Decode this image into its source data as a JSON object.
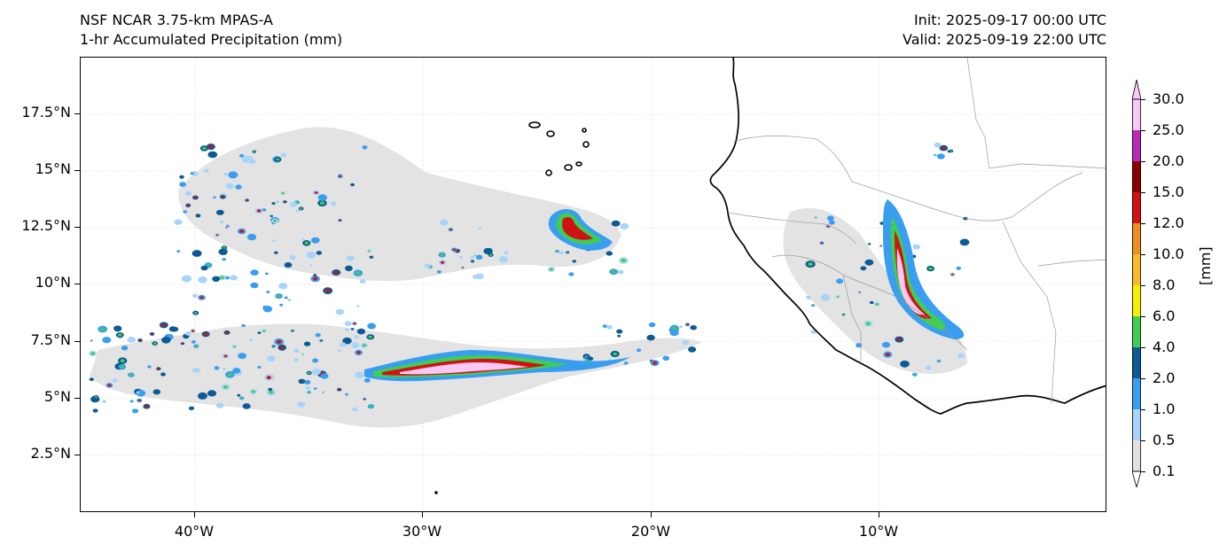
{
  "header": {
    "model": "NSF NCAR 3.75-km MPAS-A",
    "field": "1-hr Accumulated Precipitation (mm)",
    "init": "Init: 2025-09-17 00:00 UTC",
    "valid": "Valid: 2025-09-19 22:00 UTC"
  },
  "axes": {
    "y_ticks": [
      "17.5°N",
      "15°N",
      "12.5°N",
      "10°N",
      "7.5°N",
      "5°N",
      "2.5°N"
    ],
    "x_ticks": [
      "40°W",
      "30°W",
      "20°W",
      "10°W"
    ]
  },
  "colorbar": {
    "units": "[mm]",
    "levels": [
      "0.1",
      "0.5",
      "1.0",
      "2.0",
      "4.0",
      "6.0",
      "8.0",
      "10.0",
      "12.0",
      "15.0",
      "20.0",
      "25.0",
      "30.0"
    ],
    "colors": [
      "#e1e1e1",
      "#a6d4fa",
      "#3a9ef0",
      "#0d5a94",
      "#3ecf52",
      "#f6f000",
      "#f8b92a",
      "#ee8e22",
      "#d01212",
      "#8c0000",
      "#b92bb6",
      "#f9c8f5"
    ]
  }
}
